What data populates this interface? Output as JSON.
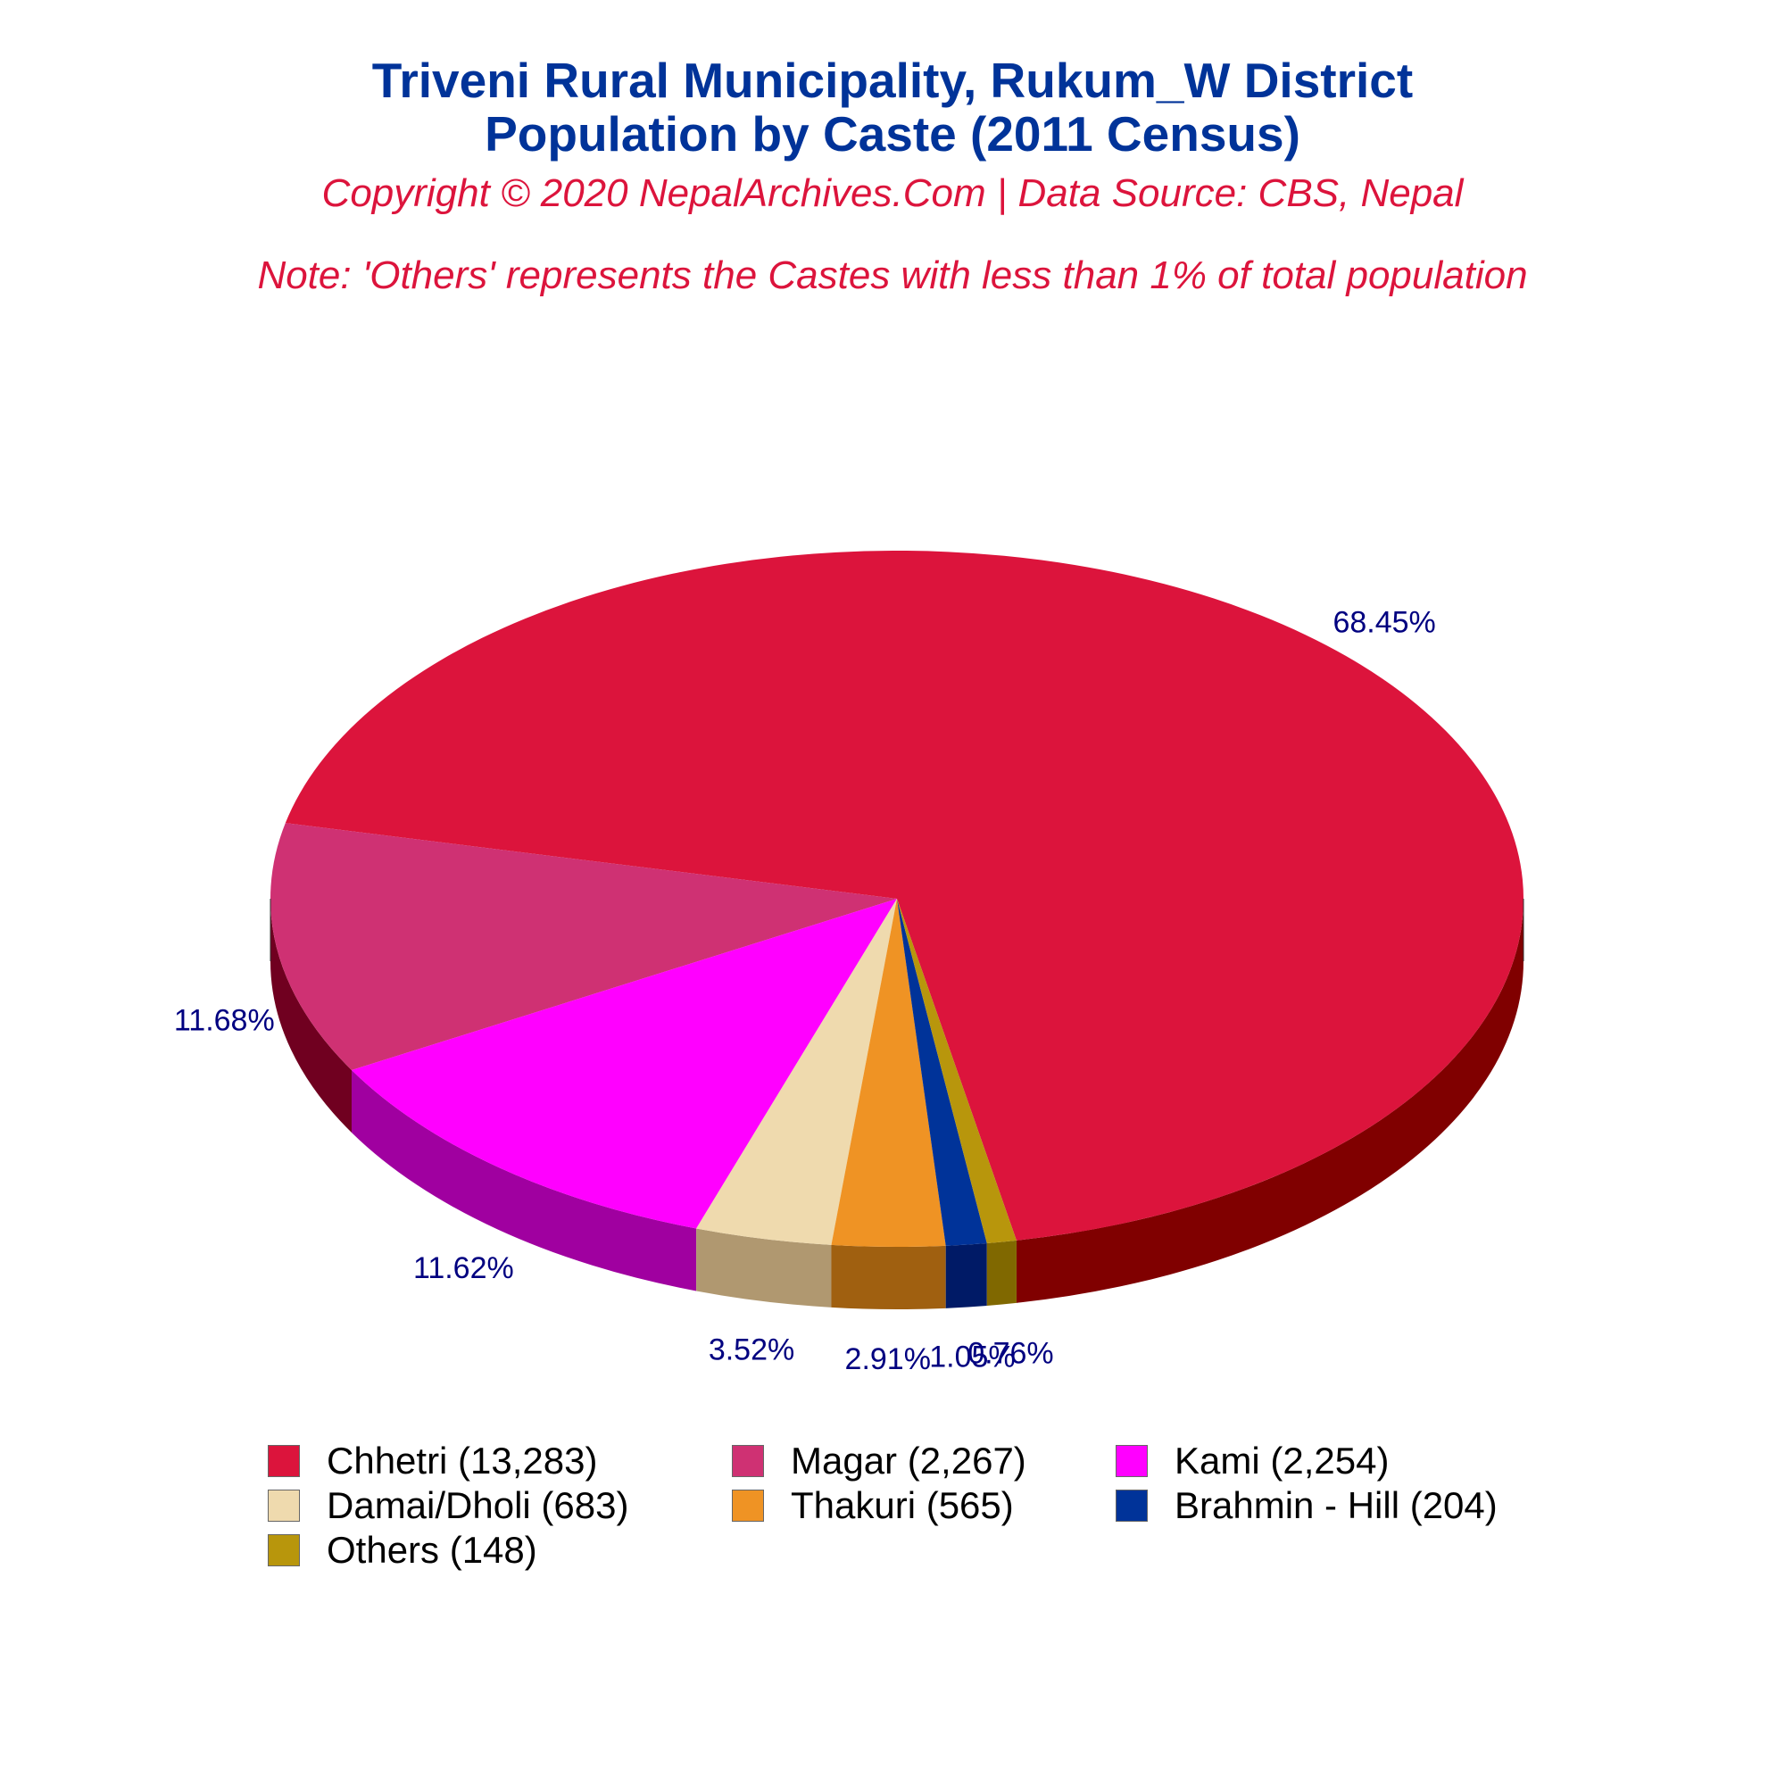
{
  "title_line1": "Triveni Rural Municipality, Rukum_W District",
  "title_line2": "Population by Caste (2011 Census)",
  "copyright": "Copyright © 2020 NepalArchives.Com | Data Source: CBS, Nepal",
  "note": "Note: 'Others' represents the Castes with less than 1% of total population",
  "chart_data": {
    "type": "pie",
    "style": "3d",
    "title": "Triveni Rural Municipality, Rukum_W District Population by Caste (2011 Census)",
    "categories": [
      "Chhetri",
      "Magar",
      "Kami",
      "Damai/Dholi",
      "Thakuri",
      "Brahmin - Hill",
      "Others"
    ],
    "values": [
      13283,
      2267,
      2254,
      683,
      565,
      204,
      148
    ],
    "percent_labels": [
      "68.45%",
      "11.68%",
      "11.62%",
      "3.52%",
      "2.91%",
      "1.05%",
      "0.76%"
    ],
    "legend_labels": [
      "Chhetri (13,283)",
      "Magar (2,267)",
      "Kami (2,254)",
      "Damai/Dholi (683)",
      "Thakuri (565)",
      "Brahmin - Hill (204)",
      "Others (148)"
    ],
    "colors": [
      "#dc143c",
      "#cf3173",
      "#ff00ff",
      "#efdaae",
      "#ef9324",
      "#003399",
      "#b8960c"
    ],
    "side_colors": [
      "#800000",
      "#700020",
      "#a000a0",
      "#b09870",
      "#a06010",
      "#001a66",
      "#806800"
    ],
    "legend_position": "bottom"
  }
}
